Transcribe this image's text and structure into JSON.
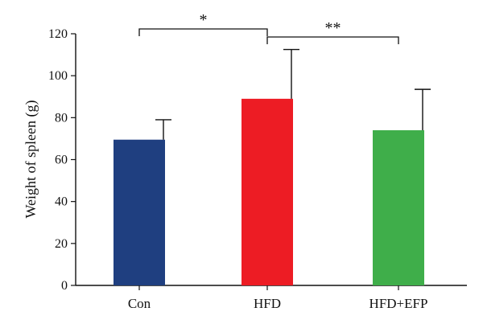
{
  "chart_data": {
    "type": "bar",
    "categories": [
      "Con",
      "HFD",
      "HFD+EFP"
    ],
    "values": [
      69.5,
      89,
      74
    ],
    "error_upper": [
      79,
      112.5,
      93.5
    ],
    "colors": [
      "#1f3f80",
      "#ed1c24",
      "#3fae4a"
    ],
    "ylabel": "Weight of spleen (g)",
    "xlabel": "",
    "ylim": [
      0,
      120
    ],
    "yticks": [
      0,
      20,
      40,
      60,
      80,
      100,
      120
    ],
    "grid": false,
    "significance": [
      {
        "from": 0,
        "to": 1,
        "label": "*"
      },
      {
        "from": 1,
        "to": 2,
        "label": "**"
      }
    ]
  }
}
